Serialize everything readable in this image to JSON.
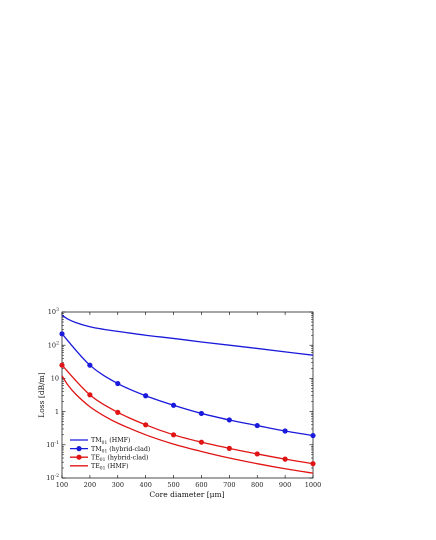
{
  "chart_data": {
    "type": "line",
    "xlabel": "Core diameter [μm]",
    "ylabel": "Loss [dB/m]",
    "xlim": [
      100,
      1000
    ],
    "ylim": [
      0.01,
      1000
    ],
    "yscale": "log",
    "grid": false,
    "legend_position": "bottom-left",
    "x_ticks": [
      "100",
      "200",
      "300",
      "400",
      "500",
      "600",
      "700",
      "800",
      "900",
      "1000"
    ],
    "y_ticks": [
      {
        "value": 0.01,
        "base": "10",
        "exp": "-2"
      },
      {
        "value": 0.1,
        "base": "10",
        "exp": "-1"
      },
      {
        "value": 1,
        "base": "1",
        "exp": ""
      },
      {
        "value": 10,
        "base": "10",
        "exp": ""
      },
      {
        "value": 100,
        "base": "10",
        "exp": "2"
      },
      {
        "value": 1000,
        "base": "10",
        "exp": "3"
      }
    ],
    "series": [
      {
        "name": "TM01 (HMF)",
        "label_main": "TM",
        "label_sub": "01",
        "label_rest": " (HMF)",
        "color": "#1a1adc",
        "markers": false,
        "x": [
          100,
          120,
          150,
          200,
          250,
          300,
          400,
          500,
          600,
          700,
          800,
          900,
          1000
        ],
        "y": [
          800,
          620,
          480,
          360,
          300,
          260,
          200,
          160,
          125,
          100,
          80,
          63,
          50
        ]
      },
      {
        "name": "TM01 (hybrid-clad)",
        "label_main": "TM",
        "label_sub": "01",
        "label_rest": " (hybrid-clad)",
        "color": "#1a1adc",
        "markers": true,
        "x": [
          100,
          200,
          300,
          400,
          500,
          600,
          700,
          800,
          900,
          1000
        ],
        "y": [
          220,
          25,
          7,
          3,
          1.55,
          0.88,
          0.56,
          0.38,
          0.26,
          0.19
        ]
      },
      {
        "name": "TE01 (hybrid-clad)",
        "label_main": "TE",
        "label_sub": "01",
        "label_rest": " (hybrid-clad)",
        "color": "#e01414",
        "markers": true,
        "x": [
          100,
          200,
          300,
          400,
          500,
          600,
          700,
          800,
          900,
          1000
        ],
        "y": [
          25,
          3.2,
          0.95,
          0.4,
          0.2,
          0.12,
          0.078,
          0.053,
          0.037,
          0.027
        ]
      },
      {
        "name": "TE01 (HMF)",
        "label_main": "TE",
        "label_sub": "01",
        "label_rest": " (HMF)",
        "color": "#e01414",
        "markers": false,
        "x": [
          100,
          120,
          150,
          200,
          250,
          300,
          400,
          500,
          600,
          700,
          800,
          900,
          1000
        ],
        "y": [
          12,
          6.5,
          3.3,
          1.4,
          0.75,
          0.45,
          0.2,
          0.105,
          0.063,
          0.04,
          0.027,
          0.019,
          0.014
        ]
      }
    ]
  }
}
